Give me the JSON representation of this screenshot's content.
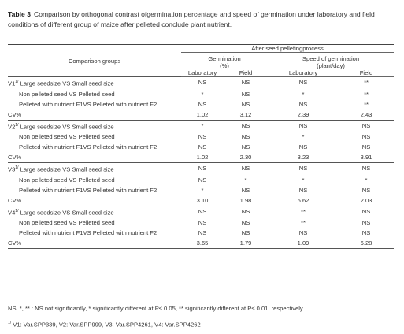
{
  "title": {
    "label": "Table 3",
    "text": "Comparison by orthogonal contrast ofgermination percentage and speed of germination under laboratory and field conditions of different group of maize after pelleted conclude plant nutrient."
  },
  "header": {
    "groups": "Comparison groups",
    "process": "After seed pelletingprocess",
    "germination": [
      "Germination",
      "(%)"
    ],
    "speed": [
      "Speed of germination",
      "(plant/day)"
    ],
    "columns": [
      "Laboratory",
      "Field",
      "Laboratory",
      "Field"
    ]
  },
  "table": {
    "groups": [
      {
        "label": "V1",
        "sup": "1/",
        "rows": [
          [
            "Large seedsize VS Small seed size",
            "NS",
            "NS",
            "NS",
            "**"
          ],
          [
            "Non pelleted seed VS Pelleted seed",
            "*",
            "NS",
            "*",
            "**"
          ],
          [
            "Pelleted with nutrient F1VS Pelleted with nutrient F2",
            "NS",
            "NS",
            "NS",
            "**"
          ]
        ],
        "cv": [
          "CV%",
          "1.02",
          "3.12",
          "2.39",
          "2.43"
        ]
      },
      {
        "label": "V2",
        "sup": "1/",
        "rows": [
          [
            "Large seedsize VS Small seed size",
            "*",
            "NS",
            "NS",
            "NS"
          ],
          [
            "Non pelleted seed VS Pelleted seed",
            "NS",
            "NS",
            "*",
            "NS"
          ],
          [
            "Pelleted with nutrient F1VS Pelleted with nutrient F2",
            "NS",
            "NS",
            "NS",
            "NS"
          ]
        ],
        "cv": [
          "CV%",
          "1.02",
          "2.30",
          "3.23",
          "3.91"
        ]
      },
      {
        "label": "V3",
        "sup": "1/",
        "rows": [
          [
            "Large seedsize VS Small seed size",
            "NS",
            "NS",
            "NS",
            "NS"
          ],
          [
            "Non pelleted seed VS Pelleted seed",
            "NS",
            "*",
            "*",
            "*"
          ],
          [
            "Pelleted with nutrient F1VS Pelleted with nutrient F2",
            "*",
            "NS",
            "NS",
            "NS"
          ]
        ],
        "cv": [
          "CV%",
          "3.10",
          "1.98",
          "6.62",
          "2.03"
        ]
      },
      {
        "label": "V4",
        "sup": "1/",
        "rows": [
          [
            "Large seedsize VS Small seed size",
            "NS",
            "NS",
            "**",
            "NS"
          ],
          [
            "Non pelleted seed VS Pelleted seed",
            "NS",
            "NS",
            "**",
            "NS"
          ],
          [
            "Pelleted with nutrient F1VS Pelleted with nutrient F2",
            "NS",
            "NS",
            "NS",
            "NS"
          ]
        ],
        "cv": [
          "CV%",
          "3.65",
          "1.79",
          "1.09",
          "6.28"
        ]
      }
    ]
  },
  "footnotes": {
    "significance": "NS, *, ** : NS not significantly, * significantly different at P≤ 0.05, ** significantly different at P≤ 0.01, respectively.",
    "sup": "1/",
    "varieties": "V1: Var.SPP339, V2: Var.SPP999, V3: Var.SPP4261, V4: Var.SPP4262"
  }
}
